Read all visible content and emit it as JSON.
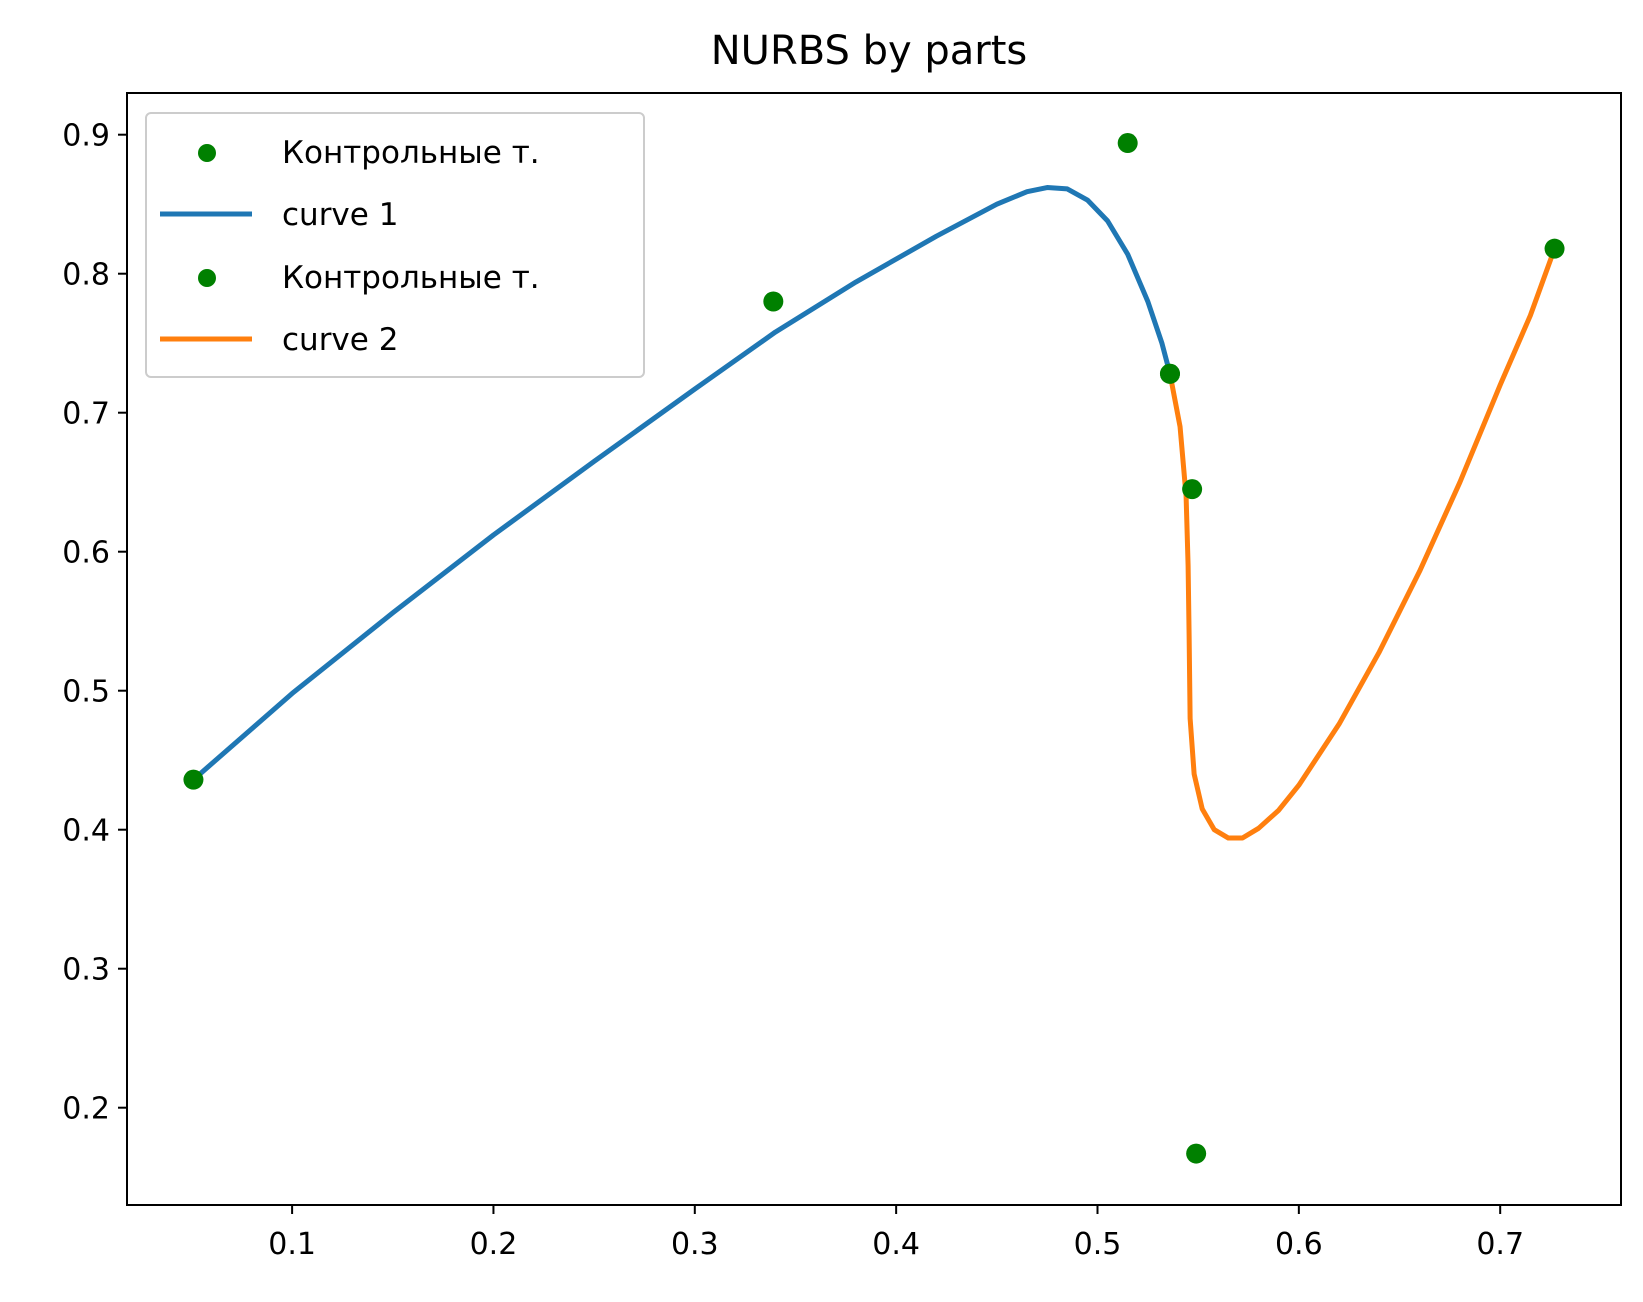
{
  "chart_data": {
    "type": "line",
    "title": "NURBS by parts",
    "xlabel": "",
    "ylabel": "",
    "xlim": [
      0.018,
      0.76
    ],
    "ylim": [
      0.13,
      0.93
    ],
    "x_ticks": [
      "0.1",
      "0.2",
      "0.3",
      "0.4",
      "0.5",
      "0.6",
      "0.7"
    ],
    "y_ticks": [
      "0.2",
      "0.3",
      "0.4",
      "0.5",
      "0.6",
      "0.7",
      "0.8",
      "0.9"
    ],
    "grid": false,
    "legend_position": "upper-left",
    "colors": {
      "points": "#008000",
      "curve1": "#1f77b4",
      "curve2": "#ff7f0e"
    },
    "control_points_1": {
      "name": "Контрольные т.",
      "x": [
        0.051,
        0.339,
        0.515,
        0.536
      ],
      "y": [
        0.436,
        0.78,
        0.894,
        0.728
      ]
    },
    "curve_1": {
      "name": "curve 1",
      "x": [
        0.051,
        0.1,
        0.15,
        0.2,
        0.25,
        0.3,
        0.34,
        0.38,
        0.42,
        0.45,
        0.465,
        0.475,
        0.485,
        0.495,
        0.505,
        0.515,
        0.525,
        0.532,
        0.536
      ],
      "y": [
        0.436,
        0.498,
        0.556,
        0.612,
        0.665,
        0.717,
        0.758,
        0.794,
        0.827,
        0.85,
        0.859,
        0.862,
        0.861,
        0.853,
        0.838,
        0.814,
        0.78,
        0.75,
        0.728
      ]
    },
    "control_points_2": {
      "name": "Контрольные т.",
      "x": [
        0.536,
        0.547,
        0.549,
        0.727
      ],
      "y": [
        0.728,
        0.645,
        0.167,
        0.818
      ]
    },
    "curve_2": {
      "name": "curve 2",
      "x": [
        0.536,
        0.541,
        0.544,
        0.545,
        0.5455,
        0.546,
        0.548,
        0.552,
        0.558,
        0.565,
        0.572,
        0.58,
        0.59,
        0.6,
        0.62,
        0.64,
        0.66,
        0.68,
        0.7,
        0.715,
        0.727
      ],
      "y": [
        0.728,
        0.69,
        0.64,
        0.59,
        0.54,
        0.48,
        0.44,
        0.415,
        0.4,
        0.394,
        0.394,
        0.401,
        0.414,
        0.432,
        0.476,
        0.528,
        0.586,
        0.65,
        0.72,
        0.77,
        0.818
      ]
    }
  }
}
